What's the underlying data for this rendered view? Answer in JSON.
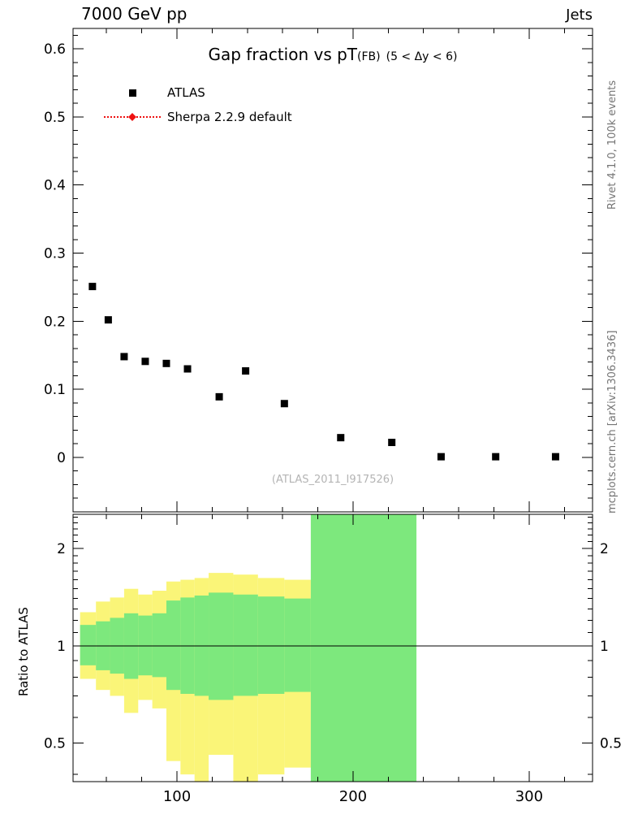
{
  "header": {
    "left": "7000 GeV pp",
    "right": "Jets"
  },
  "side": {
    "top": "Rivet 4.1.0, 100k events",
    "bottom": "mcplots.cern.ch [arXiv:1306.3436]"
  },
  "main_title": {
    "main": "Gap fraction vs pT",
    "sub": "(FB)",
    "cut": "(5 < Δy < 6)"
  },
  "legend": {
    "items": [
      {
        "label": "ATLAS",
        "marker": "black-square"
      },
      {
        "label": "Sherpa 2.2.9 default",
        "marker": "red-dotted-line-with-diamond"
      }
    ]
  },
  "watermark": "(ATLAS_2011_I917526)",
  "colors": {
    "band_yellow": "#faf578",
    "band_green": "#7de87d",
    "data_points": "#000000",
    "sherpa_red": "#ee1111"
  },
  "chart_data": {
    "type": "scatter",
    "title": "Gap fraction vs pT(FB) (5 < Δy < 6)",
    "xlabel": "",
    "ylabel": "",
    "xlim": [
      41,
      336
    ],
    "main": {
      "ylim": [
        -0.08,
        0.63
      ],
      "yticks": [
        0,
        0.1,
        0.2,
        0.3,
        0.4,
        0.5,
        0.6
      ],
      "ytick_labels": [
        "0",
        "0.1",
        "0.2",
        "0.3",
        "0.4",
        "0.5",
        "0.6"
      ],
      "xticks": [
        100,
        200,
        300
      ],
      "xtick_labels": [
        "100",
        "200",
        "300"
      ],
      "series": [
        {
          "name": "ATLAS",
          "marker": "square",
          "color": "#000000",
          "x": [
            52,
            61,
            70,
            82,
            94,
            106,
            124,
            139,
            161,
            193,
            222,
            250,
            281,
            315
          ],
          "y": [
            0.251,
            0.202,
            0.148,
            0.141,
            0.138,
            0.13,
            0.089,
            0.127,
            0.079,
            0.029,
            0.022,
            0.001,
            0.001,
            0.001
          ]
        }
      ]
    },
    "ratio": {
      "ylabel": "Ratio to ATLAS",
      "scale": "log",
      "ylim": [
        0.38,
        2.55
      ],
      "yticks": [
        0.5,
        1,
        2
      ],
      "ytick_labels": [
        "0.5",
        "1",
        "2"
      ],
      "yminors": [
        0.4,
        0.6,
        0.7,
        0.8,
        0.9,
        1.1,
        1.2,
        1.3,
        1.4,
        1.5,
        1.6,
        1.7,
        1.8,
        1.9,
        2.1,
        2.2,
        2.3,
        2.4,
        2.5
      ],
      "ref_line": 1,
      "bands": [
        {
          "x1": 45,
          "x2": 54,
          "yellow": [
            0.79,
            1.27
          ],
          "green": [
            0.87,
            1.16
          ]
        },
        {
          "x1": 54,
          "x2": 62,
          "yellow": [
            0.73,
            1.37
          ],
          "green": [
            0.84,
            1.19
          ]
        },
        {
          "x1": 62,
          "x2": 70,
          "yellow": [
            0.7,
            1.41
          ],
          "green": [
            0.82,
            1.22
          ]
        },
        {
          "x1": 70,
          "x2": 78,
          "yellow": [
            0.62,
            1.5
          ],
          "green": [
            0.79,
            1.26
          ]
        },
        {
          "x1": 78,
          "x2": 86,
          "yellow": [
            0.68,
            1.44
          ],
          "green": [
            0.81,
            1.24
          ]
        },
        {
          "x1": 86,
          "x2": 94,
          "yellow": [
            0.64,
            1.48
          ],
          "green": [
            0.8,
            1.26
          ]
        },
        {
          "x1": 94,
          "x2": 102,
          "yellow": [
            0.44,
            1.58
          ],
          "green": [
            0.73,
            1.38
          ]
        },
        {
          "x1": 102,
          "x2": 110,
          "yellow": [
            0.4,
            1.6
          ],
          "green": [
            0.71,
            1.41
          ]
        },
        {
          "x1": 110,
          "x2": 118,
          "yellow": [
            0.38,
            1.62
          ],
          "green": [
            0.7,
            1.43
          ]
        },
        {
          "x1": 118,
          "x2": 132,
          "yellow": [
            0.46,
            1.68
          ],
          "green": [
            0.68,
            1.46
          ]
        },
        {
          "x1": 132,
          "x2": 146,
          "yellow": [
            0.38,
            1.66
          ],
          "green": [
            0.7,
            1.44
          ]
        },
        {
          "x1": 146,
          "x2": 161,
          "yellow": [
            0.4,
            1.62
          ],
          "green": [
            0.71,
            1.42
          ]
        },
        {
          "x1": 161,
          "x2": 176,
          "yellow": [
            0.42,
            1.6
          ],
          "green": [
            0.72,
            1.4
          ]
        },
        {
          "x1": 176,
          "x2": 236,
          "green": [
            0.38,
            2.55
          ]
        }
      ]
    }
  }
}
